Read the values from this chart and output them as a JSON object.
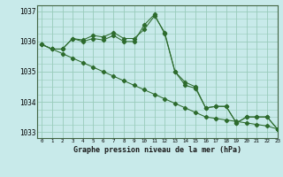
{
  "title": "Graphe pression niveau de la mer (hPa)",
  "background_color": "#c8eaea",
  "grid_color": "#99ccbb",
  "line_color": "#2d6b2d",
  "xlim": [
    -0.5,
    23
  ],
  "ylim": [
    1032.8,
    1037.2
  ],
  "yticks": [
    1033,
    1034,
    1035,
    1036,
    1037
  ],
  "xtick_labels": [
    "0",
    "1",
    "2",
    "3",
    "4",
    "5",
    "6",
    "7",
    "8",
    "9",
    "10",
    "11",
    "12",
    "13",
    "14",
    "15",
    "16",
    "17",
    "18",
    "19",
    "20",
    "21",
    "22",
    "23"
  ],
  "series_straight": [
    1035.9,
    1035.75,
    1035.6,
    1035.45,
    1035.3,
    1035.15,
    1035.0,
    1034.85,
    1034.7,
    1034.55,
    1034.4,
    1034.25,
    1034.1,
    1033.95,
    1033.8,
    1033.65,
    1033.5,
    1033.45,
    1033.4,
    1033.35,
    1033.3,
    1033.25,
    1033.2,
    1033.1
  ],
  "series_peaked": [
    1035.9,
    1035.75,
    1035.75,
    1036.1,
    1036.05,
    1036.2,
    1036.15,
    1036.3,
    1036.1,
    1036.1,
    1036.4,
    1036.85,
    1036.3,
    1035.0,
    1034.65,
    1034.5,
    1033.8,
    1033.85,
    1033.85,
    1033.3,
    1033.5,
    1033.5,
    1033.5,
    1033.1
  ],
  "series_mid": [
    1035.9,
    1035.75,
    1035.75,
    1036.1,
    1036.0,
    1036.1,
    1036.05,
    1036.2,
    1036.0,
    1036.0,
    1036.55,
    1036.9,
    1036.25,
    1035.0,
    1034.55,
    1034.45,
    1033.8,
    1033.85,
    1033.85,
    1033.3,
    1033.5,
    1033.5,
    1033.5,
    1033.1
  ]
}
